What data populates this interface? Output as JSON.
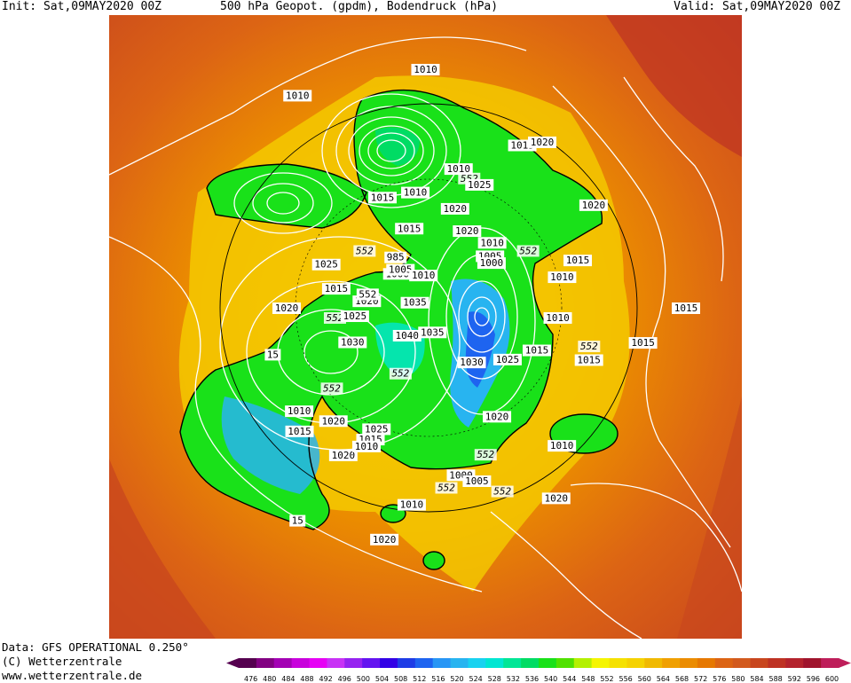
{
  "header": {
    "init": "Init: Sat,09MAY2020 00Z",
    "title": "500 hPa Geopot. (gpdm), Bodendruck (hPa)",
    "valid": "Valid: Sat,09MAY2020 00Z"
  },
  "footer": {
    "data_source": "Data: GFS OPERATIONAL 0.250°",
    "copyright": "(C) Wetterzentrale",
    "url": "www.wetterzentrale.de"
  },
  "colors": {
    "colorbar": [
      "#55004f",
      "#820082",
      "#a300b4",
      "#c800dc",
      "#e600f5",
      "#c832f5",
      "#9623f0",
      "#6414f0",
      "#3200e6",
      "#1e3ce6",
      "#1e64f0",
      "#2896f5",
      "#28b4f0",
      "#19d2f0",
      "#00e6d2",
      "#00e696",
      "#00dc64",
      "#19e119",
      "#50e100",
      "#b4f000",
      "#f5f500",
      "#f5e100",
      "#f5d200",
      "#f0b900",
      "#f0a000",
      "#eb8c00",
      "#e67800",
      "#dc6414",
      "#d25a1e",
      "#c8461e",
      "#be3223",
      "#b4232d",
      "#a0142d",
      "#be1e5a"
    ],
    "contour_line": "#ffffff",
    "geopotential_552_line": "#000000",
    "coastline": "#000000"
  },
  "colorbar_ticks": [
    "476",
    "480",
    "484",
    "488",
    "492",
    "496",
    "500",
    "504",
    "508",
    "512",
    "516",
    "520",
    "524",
    "528",
    "532",
    "536",
    "540",
    "544",
    "548",
    "552",
    "556",
    "560",
    "564",
    "568",
    "572",
    "576",
    "580",
    "584",
    "588",
    "592",
    "596",
    "600"
  ],
  "geopotential_labels": [
    {
      "text": "552",
      "lon": -150,
      "lat": 62
    },
    {
      "text": "552",
      "lon": -120,
      "lat": 55
    },
    {
      "text": "552",
      "lon": 170,
      "lat": 65
    },
    {
      "text": "552",
      "lon": 60,
      "lat": 65
    },
    {
      "text": "552",
      "lon": 10,
      "lat": 53
    },
    {
      "text": "552",
      "lon": -50,
      "lat": 52
    },
    {
      "text": "552",
      "lon": -48,
      "lat": 42
    },
    {
      "text": "552",
      "lon": -65,
      "lat": 45
    },
    {
      "text": "552",
      "lon": -100,
      "lat": 70
    },
    {
      "text": "552",
      "lon": 105,
      "lat": 57
    }
  ],
  "pressure_labels": [
    {
      "text": "1010",
      "lon": 120,
      "lat": 30
    },
    {
      "text": "1015",
      "lon": 145,
      "lat": 58
    },
    {
      "text": "1025",
      "lon": -175,
      "lat": 58
    },
    {
      "text": "985",
      "lon": 160,
      "lat": 72
    },
    {
      "text": "1010",
      "lon": 130,
      "lat": 60
    },
    {
      "text": "1015",
      "lon": 90,
      "lat": 45
    },
    {
      "text": "1020",
      "lon": 85,
      "lat": 42
    },
    {
      "text": "1000",
      "lon": 170,
      "lat": 75
    },
    {
      "text": "1005",
      "lon": 165,
      "lat": 75
    },
    {
      "text": "1015",
      "lon": 140,
      "lat": 68
    },
    {
      "text": "1010",
      "lon": 110,
      "lat": 55
    },
    {
      "text": "1020",
      "lon": 110,
      "lat": 65
    },
    {
      "text": "1025",
      "lon": 100,
      "lat": 58
    },
    {
      "text": "1020",
      "lon": -155,
      "lat": 50
    },
    {
      "text": "1010",
      "lon": 150,
      "lat": 80
    },
    {
      "text": "1015",
      "lon": -165,
      "lat": 62
    },
    {
      "text": "1020",
      "lon": -160,
      "lat": 70
    },
    {
      "text": "552",
      "lon": -165,
      "lat": 70
    },
    {
      "text": "1020",
      "lon": 100,
      "lat": 70
    },
    {
      "text": "1025",
      "lon": -150,
      "lat": 67
    },
    {
      "text": "1035",
      "lon": -165,
      "lat": 82
    },
    {
      "text": "1030",
      "lon": -135,
      "lat": 65
    },
    {
      "text": "1010",
      "lon": 80,
      "lat": 70
    },
    {
      "text": "1005",
      "lon": 75,
      "lat": 73
    },
    {
      "text": "1000",
      "lon": 70,
      "lat": 74
    },
    {
      "text": "1020",
      "lon": 60,
      "lat": 45
    },
    {
      "text": "1010",
      "lon": -120,
      "lat": 45
    },
    {
      "text": "1015",
      "lon": -115,
      "lat": 42
    },
    {
      "text": "1015",
      "lon": 45,
      "lat": 55
    },
    {
      "text": "1010",
      "lon": 40,
      "lat": 60
    },
    {
      "text": "1020",
      "lon": -110,
      "lat": 50
    },
    {
      "text": "1040",
      "lon": -120,
      "lat": 78
    },
    {
      "text": "1035",
      "lon": -95,
      "lat": 83
    },
    {
      "text": "1020",
      "lon": -100,
      "lat": 45
    },
    {
      "text": "1025",
      "lon": -95,
      "lat": 55
    },
    {
      "text": "1015",
      "lon": -95,
      "lat": 52
    },
    {
      "text": "1010",
      "lon": -95,
      "lat": 50
    },
    {
      "text": "15",
      "lon": -100,
      "lat": 25
    },
    {
      "text": "1030",
      "lon": -40,
      "lat": 75
    },
    {
      "text": "1025",
      "lon": -15,
      "lat": 70
    },
    {
      "text": "1015",
      "lon": 0,
      "lat": 65
    },
    {
      "text": "1010",
      "lon": 20,
      "lat": 62
    },
    {
      "text": "1020",
      "lon": -40,
      "lat": 60
    },
    {
      "text": "1010",
      "lon": -75,
      "lat": 40
    },
    {
      "text": "1000",
      "lon": -60,
      "lat": 48
    },
    {
      "text": "1005",
      "lon": -55,
      "lat": 46
    },
    {
      "text": "1010",
      "lon": -25,
      "lat": 45
    },
    {
      "text": "1015",
      "lon": 5,
      "lat": 52
    },
    {
      "text": "1020",
      "lon": -80,
      "lat": 30
    },
    {
      "text": "1020",
      "lon": -35,
      "lat": 35
    },
    {
      "text": "1015",
      "lon": 15,
      "lat": 40
    },
    {
      "text": "1015",
      "lon": 25,
      "lat": 30
    },
    {
      "text": "1010",
      "lon": 150,
      "lat": 25
    },
    {
      "text": "15",
      "lon": -140,
      "lat": 45
    }
  ]
}
